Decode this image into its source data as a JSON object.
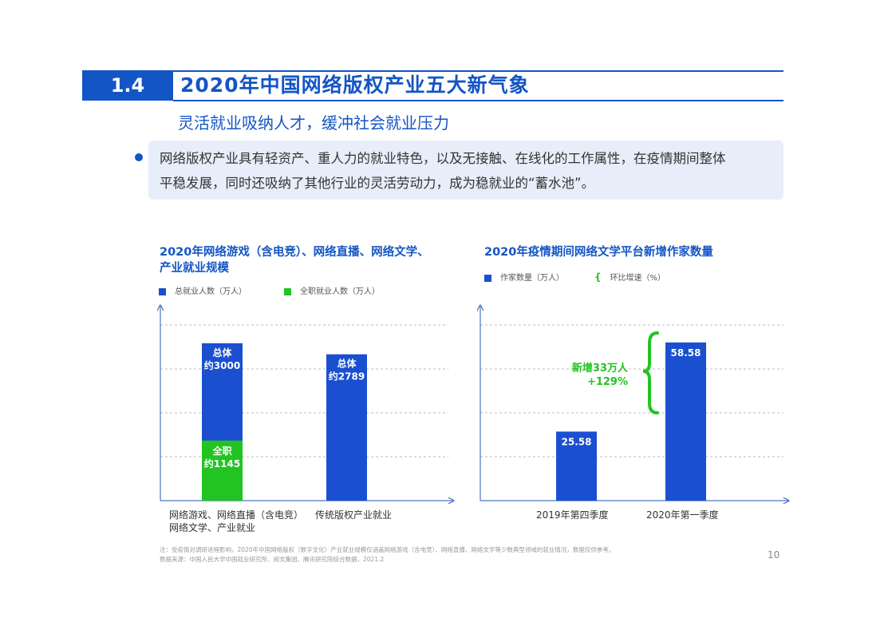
{
  "header": {
    "section_number": "1.4",
    "title": "2020年中国网络版权产业五大新气象",
    "subtitle": "灵活就业吸纳人才，缓冲社会就业压力"
  },
  "bullet": {
    "line1": "网络版权产业具有轻资产、重人力的就业特色，以及无接触、在线化的工作属性，在疫情期间整体",
    "line2": "平稳发展，同时还吸纳了其他行业的灵活劳动力，成为稳就业的“蓄水池”。"
  },
  "colors": {
    "brand_blue": "#1455c5",
    "bar_blue": "#1a4fd0",
    "bar_green": "#22c422"
  },
  "chart_data": [
    {
      "type": "bar",
      "title_line1": "2020年网络游戏（含电竞）、网络直播、网络文学、",
      "title_line2": "产业就业规模",
      "legend": [
        "总就业人数（万人）",
        "全职就业人数（万人）"
      ],
      "categories": [
        {
          "line1": "网络游戏、网络直播（含电竞）",
          "line2": "网络文学、产业就业"
        },
        {
          "line1": "传统版权产业就业",
          "line2": ""
        }
      ],
      "series": [
        {
          "name": "总就业人数（万人）",
          "values": [
            3000,
            2789
          ]
        },
        {
          "name": "全职就业人数（万人）",
          "values": [
            1145,
            null
          ]
        }
      ],
      "labels": {
        "total_a": [
          "总体",
          "约3000"
        ],
        "fulltime_a": [
          "全职",
          "约1145"
        ],
        "total_b": [
          "总体",
          "约2789"
        ]
      },
      "ylim": [
        0,
        3500
      ]
    },
    {
      "type": "bar",
      "title": "2020年疫情期间网络文学平台新增作家数量",
      "legend": [
        "作家数量（万人）",
        "环比增速（%）"
      ],
      "categories": [
        "2019年第四季度",
        "2020年第一季度"
      ],
      "values": [
        25.58,
        58.58
      ],
      "value_labels": [
        "25.58",
        "58.58"
      ],
      "annotation": [
        "新增33万人",
        "+129%"
      ],
      "ylim": [
        0,
        68
      ]
    }
  ],
  "footnote": {
    "line1": "注：受疫情对调研进程影响，2020年中国网络版权（数字文化）产业就业规模仅涵盖网络游戏（含电竞）、网络直播、网络文学等少数典型领域的就业情况，数据仅供参考。",
    "line2": "数据来源：中国人民大学中国就业研究所、阅文集团、腾讯研究院综合数据，2021.2"
  },
  "page_number": "10"
}
